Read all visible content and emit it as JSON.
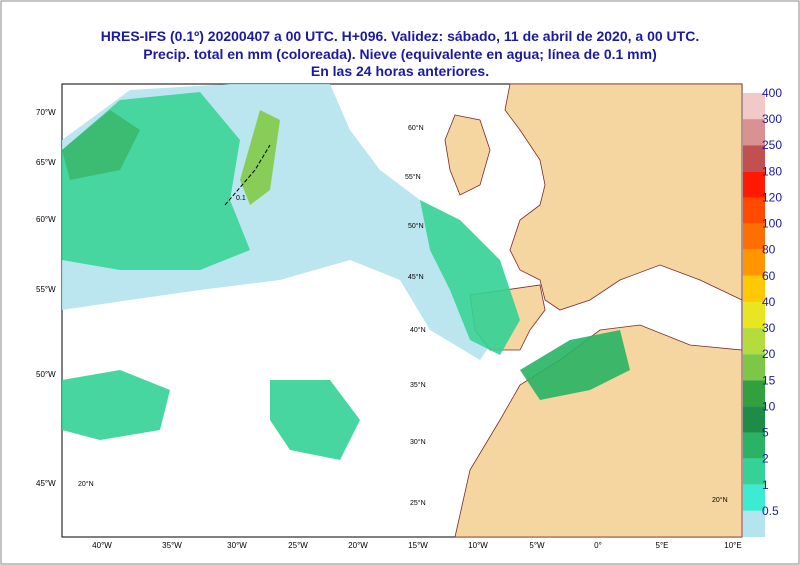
{
  "header": {
    "lines": [
      "HRES-IFS (0.1º) 20200407 a 00 UTC.  H+096. Validez: sábado, 11 de abril de 2020,  a  00 UTC.",
      "Precip. total en mm (coloreada). Nieve (equivalente en agua; línea de 0.1 mm)",
      "En las 24 horas anteriores."
    ]
  },
  "colorbar": [
    {
      "label": "400",
      "color": "#f2c9c9"
    },
    {
      "label": "300",
      "color": "#d99191"
    },
    {
      "label": "250",
      "color": "#c25050"
    },
    {
      "label": "180",
      "color": "#ff1a00"
    },
    {
      "label": "120",
      "color": "#ff4a00"
    },
    {
      "label": "100",
      "color": "#ff6e00"
    },
    {
      "label": "80",
      "color": "#ff9600"
    },
    {
      "label": "60",
      "color": "#ffc800"
    },
    {
      "label": "40",
      "color": "#e8e620"
    },
    {
      "label": "30",
      "color": "#b4dc3c"
    },
    {
      "label": "20",
      "color": "#7cc846"
    },
    {
      "label": "15",
      "color": "#32a03c"
    },
    {
      "label": "10",
      "color": "#1e8c46"
    },
    {
      "label": "5",
      "color": "#28b464"
    },
    {
      "label": "2",
      "color": "#34d296"
    },
    {
      "label": "1",
      "color": "#3cecd2"
    },
    {
      "label": "0.5",
      "color": "#b4e4ee"
    }
  ],
  "bottom_labels": [
    "40°W",
    "35°W",
    "30°W",
    "25°W",
    "20°W",
    "15°W",
    "10°W",
    "5°W",
    "0°",
    "5°E",
    "10°E"
  ],
  "left_labels": [
    "70°W",
    "65°W",
    "60°W",
    "55°W",
    "50°W",
    "45°W"
  ],
  "inner_labels": [
    "60°N",
    "55°N",
    "50°N",
    "45°N",
    "40°N",
    "35°N",
    "30°N",
    "25°N",
    "20°N",
    "20°N",
    "0.1"
  ]
}
